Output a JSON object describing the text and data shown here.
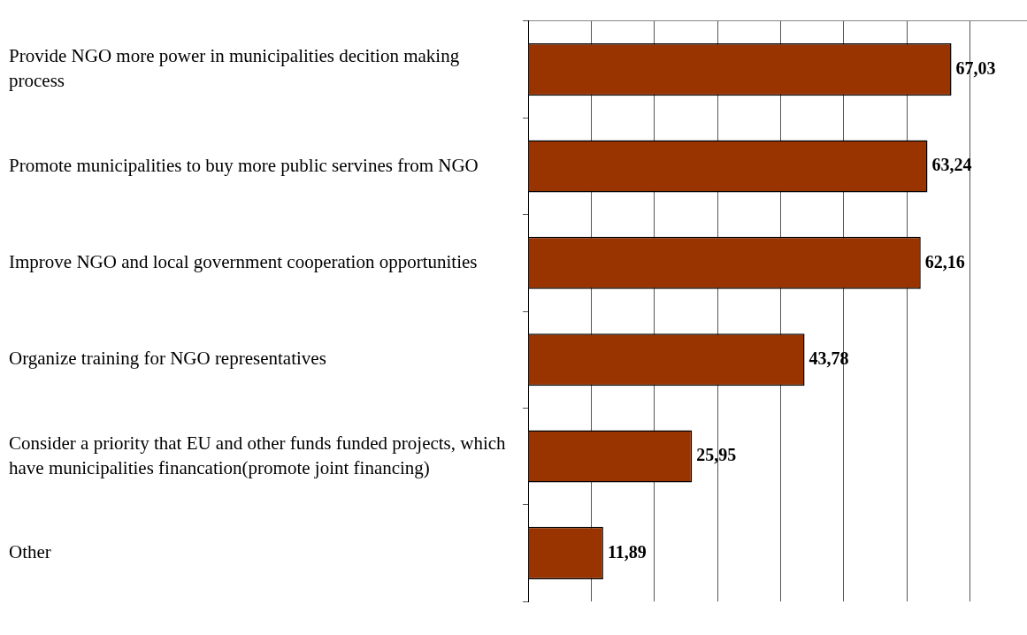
{
  "chart_data": {
    "type": "bar",
    "orientation": "horizontal",
    "categories": [
      "Provide NGO more power in municipalities decition making process",
      "Promote municipalities to buy more public servines from NGO",
      "Improve NGO and local government cooperation opportunities",
      "Organize training for NGO representatives",
      "Consider a priority that EU and other funds funded projects, which have municipalities financation(promote joint financing)",
      "Other"
    ],
    "values": [
      67.03,
      63.24,
      62.16,
      43.78,
      25.95,
      11.89
    ],
    "value_labels": [
      "67,03",
      "63,24",
      "62,16",
      "43,78",
      "25,95",
      "11,89"
    ],
    "color": "#993300",
    "xlim": [
      0,
      79
    ],
    "grid": "x",
    "tick_labels": "y"
  }
}
